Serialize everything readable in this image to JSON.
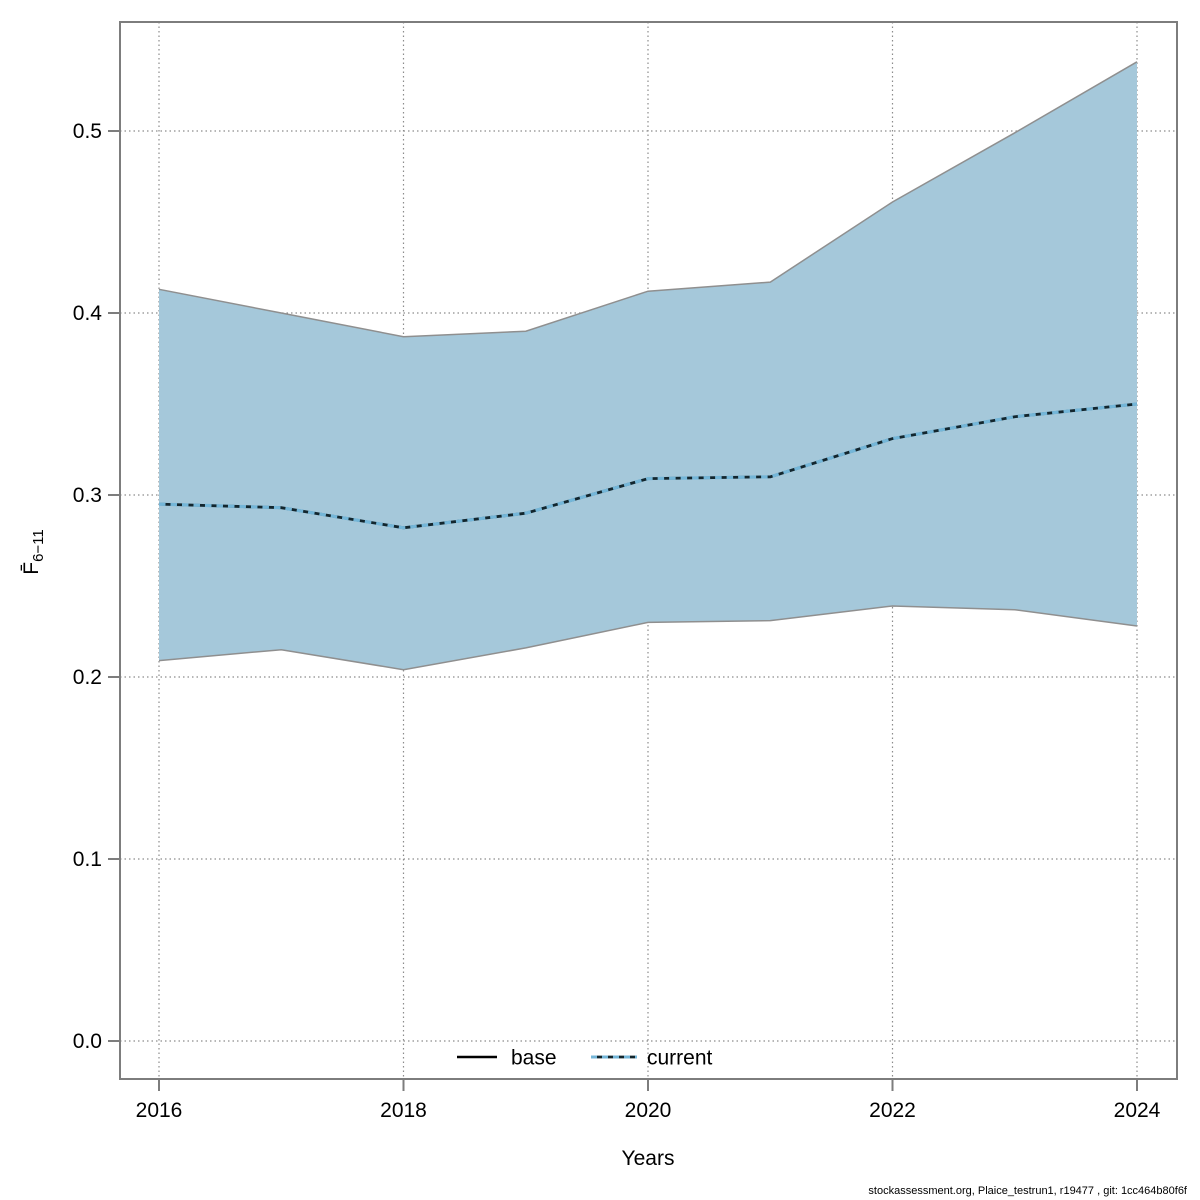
{
  "page": {
    "background": "#ffffff"
  },
  "footer": {
    "text": "stockassessment.org, Plaice_testrun1, r19477 , git: 1cc464b80f6f"
  },
  "chart_data": {
    "type": "area",
    "title": "",
    "xlabel": "Years",
    "ylabel_main": "F̄",
    "ylabel_sub": "6−11",
    "x": [
      2016,
      2017,
      2018,
      2019,
      2020,
      2021,
      2022,
      2023,
      2024
    ],
    "series": [
      {
        "name": "base",
        "values": [
          0.295,
          0.293,
          0.282,
          0.29,
          0.309,
          0.31,
          0.331,
          0.343,
          0.35
        ],
        "style": "solid-black",
        "overlaps_current": true
      },
      {
        "name": "current",
        "values": [
          0.295,
          0.293,
          0.282,
          0.29,
          0.309,
          0.31,
          0.331,
          0.343,
          0.35
        ],
        "style": "dashed-blue"
      },
      {
        "name": "ci_upper",
        "values": [
          0.413,
          0.4,
          0.387,
          0.39,
          0.412,
          0.417,
          0.461,
          0.499,
          0.538
        ],
        "style": "band-edge"
      },
      {
        "name": "ci_lower",
        "values": [
          0.209,
          0.215,
          0.204,
          0.216,
          0.23,
          0.231,
          0.239,
          0.237,
          0.228
        ],
        "style": "band-edge"
      }
    ],
    "xticks": [
      "2016",
      "2018",
      "2020",
      "2022",
      "2024"
    ],
    "xtick_values": [
      2016,
      2018,
      2020,
      2022,
      2024
    ],
    "yticks": [
      "0.0",
      "0.1",
      "0.2",
      "0.3",
      "0.4",
      "0.5"
    ],
    "ytick_values": [
      0.0,
      0.1,
      0.2,
      0.3,
      0.4,
      0.5
    ],
    "xlim": [
      2015.68,
      2024.33
    ],
    "ylim": [
      -0.021,
      0.56
    ],
    "grid": "dotted",
    "legend_position": "bottom-center-inside",
    "legend": [
      {
        "label": "base",
        "line": "solid",
        "color": "#000000"
      },
      {
        "label": "current",
        "line": "dashed",
        "color": "#74b6d8"
      }
    ],
    "colors": {
      "band_fill": "#a5c8da",
      "band_edge": "#8f8f8f",
      "current_blue": "#74b6d8",
      "base_dark": "#12262e",
      "grid": "#8c8c8c",
      "frame": "#7d7d7d",
      "text": "#000000"
    }
  }
}
